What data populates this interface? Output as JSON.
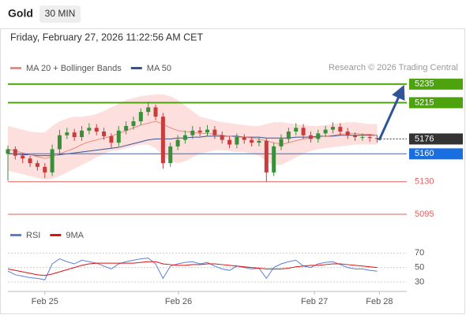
{
  "header": {
    "symbol": "Gold",
    "timeframe": "30 MIN",
    "datetime": "Friday, February 27, 2026 11:22:56 AM CET"
  },
  "chart_data": {
    "type": "candlestick",
    "legend": [
      {
        "name": "MA 20 + Bollinger Bands",
        "color": "#f08a80"
      },
      {
        "name": "MA 50",
        "color": "#2f5597"
      }
    ],
    "credit": "Research © 2026 Trading Central",
    "xlim": [
      0,
      54
    ],
    "xticks": [
      {
        "value": 5,
        "label": "Feb 25"
      },
      {
        "value": 23.1,
        "label": "Feb 26"
      },
      {
        "value": 41.5,
        "label": "Feb 27"
      },
      {
        "value": 50.3,
        "label": "Feb 28"
      }
    ],
    "ylim": [
      5084,
      5245
    ],
    "up_color": "#3a8f3a",
    "down_color": "#c83c3c",
    "band_color": "#fde0de",
    "open": [
      5160,
      5165,
      5158,
      5155,
      5150,
      5146,
      5140,
      5165,
      5180,
      5183,
      5178,
      5185,
      5188,
      5184,
      5179,
      5172,
      5185,
      5190,
      5195,
      5205,
      5210,
      5200,
      5150,
      5168,
      5175,
      5180,
      5185,
      5183,
      5186,
      5180,
      5175,
      5170,
      5178,
      5175,
      5172,
      5174,
      5140,
      5168,
      5176,
      5184,
      5188,
      5180,
      5176,
      5182,
      5186,
      5189,
      5184,
      5180,
      5178,
      5178,
      5177
    ],
    "high": [
      5169,
      5168,
      5161,
      5158,
      5153,
      5150,
      5170,
      5186,
      5188,
      5187,
      5190,
      5193,
      5192,
      5188,
      5182,
      5190,
      5195,
      5200,
      5209,
      5216,
      5213,
      5204,
      5172,
      5180,
      5185,
      5190,
      5189,
      5191,
      5190,
      5184,
      5179,
      5182,
      5181,
      5178,
      5178,
      5177,
      5172,
      5181,
      5188,
      5193,
      5192,
      5184,
      5186,
      5190,
      5194,
      5193,
      5188,
      5183,
      5182,
      5181,
      5180
    ],
    "low": [
      5131,
      5154,
      5150,
      5146,
      5142,
      5134,
      5136,
      5160,
      5176,
      5174,
      5174,
      5181,
      5180,
      5175,
      5166,
      5168,
      5181,
      5186,
      5191,
      5201,
      5196,
      5144,
      5146,
      5164,
      5171,
      5176,
      5179,
      5179,
      5176,
      5171,
      5166,
      5166,
      5171,
      5168,
      5168,
      5130,
      5136,
      5164,
      5172,
      5180,
      5176,
      5172,
      5172,
      5178,
      5182,
      5180,
      5176,
      5174,
      5174,
      5173,
      5172
    ],
    "close": [
      5165,
      5158,
      5155,
      5150,
      5146,
      5140,
      5165,
      5180,
      5183,
      5178,
      5185,
      5188,
      5184,
      5179,
      5172,
      5185,
      5190,
      5195,
      5205,
      5210,
      5200,
      5150,
      5168,
      5175,
      5180,
      5185,
      5183,
      5186,
      5180,
      5175,
      5170,
      5178,
      5175,
      5172,
      5174,
      5140,
      5168,
      5176,
      5184,
      5188,
      5180,
      5176,
      5182,
      5186,
      5189,
      5184,
      5180,
      5178,
      5178,
      5177,
      5176
    ],
    "ma20": [
      5165,
      5163,
      5161,
      5159,
      5157,
      5155,
      5157,
      5160,
      5163,
      5166,
      5170,
      5173,
      5175,
      5177,
      5179,
      5182,
      5185,
      5188,
      5191,
      5193,
      5195,
      5192,
      5188,
      5185,
      5184,
      5183,
      5182,
      5182,
      5181,
      5180,
      5179,
      5178,
      5178,
      5177,
      5176,
      5174,
      5172,
      5170,
      5172,
      5174,
      5176,
      5177,
      5178,
      5179,
      5180,
      5181,
      5182,
      5182,
      5181,
      5181,
      5180
    ],
    "bb_upper": [
      5190,
      5188,
      5186,
      5184,
      5183,
      5183,
      5190,
      5195,
      5198,
      5200,
      5200,
      5201,
      5203,
      5206,
      5210,
      5214,
      5218,
      5220,
      5222,
      5223,
      5224,
      5224,
      5222,
      5218,
      5212,
      5206,
      5200,
      5198,
      5196,
      5194,
      5193,
      5192,
      5191,
      5190,
      5190,
      5192,
      5194,
      5194,
      5193,
      5192,
      5191,
      5190,
      5190,
      5191,
      5192,
      5193,
      5194,
      5194,
      5193,
      5192,
      5192
    ],
    "bb_lower": [
      5142,
      5140,
      5138,
      5136,
      5134,
      5132,
      5133,
      5136,
      5140,
      5144,
      5148,
      5152,
      5156,
      5160,
      5163,
      5164,
      5166,
      5168,
      5170,
      5170,
      5166,
      5158,
      5152,
      5150,
      5152,
      5156,
      5160,
      5162,
      5164,
      5164,
      5163,
      5162,
      5162,
      5160,
      5158,
      5152,
      5148,
      5148,
      5152,
      5156,
      5160,
      5163,
      5165,
      5166,
      5167,
      5168,
      5169,
      5170,
      5170,
      5170,
      5170
    ],
    "ma50": [
      5160,
      5160,
      5159,
      5159,
      5158,
      5158,
      5158,
      5159,
      5160,
      5161,
      5162,
      5163,
      5164,
      5165,
      5166,
      5167,
      5169,
      5171,
      5173,
      5175,
      5176,
      5176,
      5176,
      5177,
      5177,
      5178,
      5178,
      5179,
      5179,
      5179,
      5179,
      5179,
      5178,
      5178,
      5178,
      5177,
      5177,
      5177,
      5177,
      5178,
      5178,
      5178,
      5179,
      5179,
      5179,
      5180,
      5180,
      5180,
      5180,
      5180,
      5180
    ],
    "resistance": [
      5235,
      5215
    ],
    "resistance_color": "#4ca30d",
    "last_price": 5176,
    "last_color": "#333333",
    "pivot": 5160,
    "pivot_color": "#1a6fe0",
    "support": [
      5130,
      5095
    ],
    "support_color": "#e06060",
    "rsi_panel": {
      "legend": [
        {
          "name": "RSI",
          "color": "#5b7fd6"
        },
        {
          "name": "9MA",
          "color": "#e01010"
        }
      ],
      "ylim": [
        17,
        80
      ],
      "yticks": [
        70,
        50,
        30
      ],
      "rsi": [
        45,
        40,
        38,
        36,
        35,
        33,
        55,
        62,
        58,
        55,
        60,
        58,
        56,
        52,
        48,
        55,
        58,
        60,
        62,
        63,
        55,
        35,
        52,
        55,
        57,
        58,
        55,
        57,
        52,
        48,
        46,
        52,
        50,
        48,
        49,
        35,
        50,
        55,
        58,
        60,
        52,
        50,
        55,
        57,
        58,
        54,
        50,
        48,
        48,
        46,
        45
      ],
      "ma9": [
        48,
        46,
        44,
        42,
        40,
        39,
        41,
        44,
        47,
        50,
        53,
        55,
        56,
        56,
        56,
        56,
        56,
        56,
        57,
        58,
        58,
        55,
        54,
        53,
        53,
        54,
        54,
        55,
        55,
        54,
        53,
        52,
        51,
        50,
        49,
        48,
        48,
        48,
        49,
        51,
        52,
        53,
        53,
        54,
        55,
        55,
        54,
        53,
        52,
        51,
        50
      ]
    }
  }
}
